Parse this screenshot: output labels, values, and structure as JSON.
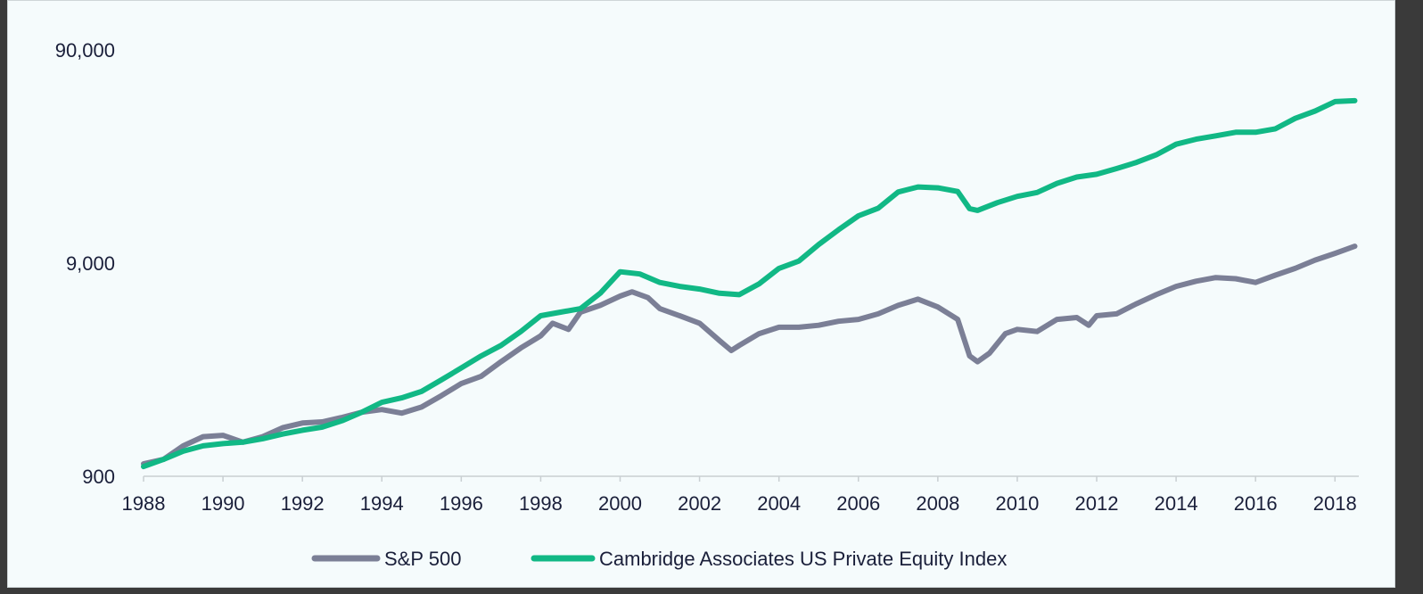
{
  "chart_data": {
    "type": "line",
    "title": "",
    "xlabel": "",
    "ylabel": "",
    "x_range": [
      1988,
      2018.6
    ],
    "y_scale": "log",
    "ylim": [
      900,
      90000
    ],
    "y_ticks": [
      {
        "value": 90000,
        "label": "90,000"
      },
      {
        "value": 9000,
        "label": "9,000"
      },
      {
        "value": 900,
        "label": "900"
      }
    ],
    "x_ticks": [
      {
        "value": 1988,
        "label": "1988"
      },
      {
        "value": 1990,
        "label": "1990"
      },
      {
        "value": 1992,
        "label": "1992"
      },
      {
        "value": 1994,
        "label": "1994"
      },
      {
        "value": 1996,
        "label": "1996"
      },
      {
        "value": 1998,
        "label": "1998"
      },
      {
        "value": 2000,
        "label": "2000"
      },
      {
        "value": 2002,
        "label": "2002"
      },
      {
        "value": 2004,
        "label": "2004"
      },
      {
        "value": 2006,
        "label": "2006"
      },
      {
        "value": 2008,
        "label": "2008"
      },
      {
        "value": 2010,
        "label": "2010"
      },
      {
        "value": 2012,
        "label": "2012"
      },
      {
        "value": 2014,
        "label": "2014"
      },
      {
        "value": 2016,
        "label": "2016"
      },
      {
        "value": 2018,
        "label": "2018"
      }
    ],
    "grid": false,
    "legend_position": "bottom",
    "series": [
      {
        "name": "S&P 500",
        "color": "#7b7f96",
        "points": [
          [
            1988.0,
            1030
          ],
          [
            1988.5,
            1080
          ],
          [
            1989.0,
            1250
          ],
          [
            1989.5,
            1380
          ],
          [
            1990.0,
            1400
          ],
          [
            1990.5,
            1300
          ],
          [
            1991.0,
            1380
          ],
          [
            1991.5,
            1520
          ],
          [
            1992.0,
            1600
          ],
          [
            1992.5,
            1620
          ],
          [
            1993.0,
            1700
          ],
          [
            1993.5,
            1800
          ],
          [
            1994.0,
            1850
          ],
          [
            1994.5,
            1780
          ],
          [
            1995.0,
            1900
          ],
          [
            1995.5,
            2150
          ],
          [
            1996.0,
            2450
          ],
          [
            1996.5,
            2650
          ],
          [
            1997.0,
            3100
          ],
          [
            1997.5,
            3600
          ],
          [
            1998.0,
            4100
          ],
          [
            1998.3,
            4700
          ],
          [
            1998.7,
            4400
          ],
          [
            1999.0,
            5300
          ],
          [
            1999.5,
            5700
          ],
          [
            2000.0,
            6300
          ],
          [
            2000.3,
            6600
          ],
          [
            2000.7,
            6200
          ],
          [
            2001.0,
            5500
          ],
          [
            2001.5,
            5100
          ],
          [
            2002.0,
            4700
          ],
          [
            2002.5,
            3900
          ],
          [
            2002.8,
            3500
          ],
          [
            2003.0,
            3700
          ],
          [
            2003.5,
            4200
          ],
          [
            2004.0,
            4500
          ],
          [
            2004.5,
            4500
          ],
          [
            2005.0,
            4600
          ],
          [
            2005.5,
            4800
          ],
          [
            2006.0,
            4900
          ],
          [
            2006.5,
            5200
          ],
          [
            2007.0,
            5700
          ],
          [
            2007.5,
            6100
          ],
          [
            2008.0,
            5600
          ],
          [
            2008.5,
            4900
          ],
          [
            2008.8,
            3300
          ],
          [
            2009.0,
            3100
          ],
          [
            2009.3,
            3400
          ],
          [
            2009.7,
            4200
          ],
          [
            2010.0,
            4400
          ],
          [
            2010.5,
            4300
          ],
          [
            2011.0,
            4900
          ],
          [
            2011.5,
            5000
          ],
          [
            2011.8,
            4600
          ],
          [
            2012.0,
            5100
          ],
          [
            2012.5,
            5200
          ],
          [
            2013.0,
            5800
          ],
          [
            2013.5,
            6400
          ],
          [
            2014.0,
            7000
          ],
          [
            2014.5,
            7400
          ],
          [
            2015.0,
            7700
          ],
          [
            2015.5,
            7600
          ],
          [
            2016.0,
            7300
          ],
          [
            2016.5,
            7900
          ],
          [
            2017.0,
            8500
          ],
          [
            2017.5,
            9300
          ],
          [
            2018.0,
            10000
          ],
          [
            2018.5,
            10800
          ]
        ]
      },
      {
        "name": "Cambridge Associates US Private Equity Index",
        "color": "#11b885",
        "points": [
          [
            1988.0,
            1000
          ],
          [
            1988.5,
            1080
          ],
          [
            1989.0,
            1180
          ],
          [
            1989.5,
            1250
          ],
          [
            1990.0,
            1280
          ],
          [
            1990.5,
            1300
          ],
          [
            1991.0,
            1350
          ],
          [
            1991.5,
            1420
          ],
          [
            1992.0,
            1480
          ],
          [
            1992.5,
            1530
          ],
          [
            1993.0,
            1640
          ],
          [
            1993.5,
            1800
          ],
          [
            1994.0,
            2000
          ],
          [
            1994.5,
            2100
          ],
          [
            1995.0,
            2250
          ],
          [
            1995.5,
            2550
          ],
          [
            1996.0,
            2900
          ],
          [
            1996.5,
            3300
          ],
          [
            1997.0,
            3700
          ],
          [
            1997.5,
            4300
          ],
          [
            1998.0,
            5100
          ],
          [
            1998.5,
            5300
          ],
          [
            1999.0,
            5500
          ],
          [
            1999.5,
            6500
          ],
          [
            2000.0,
            8200
          ],
          [
            2000.5,
            8000
          ],
          [
            2001.0,
            7300
          ],
          [
            2001.5,
            7000
          ],
          [
            2002.0,
            6800
          ],
          [
            2002.5,
            6500
          ],
          [
            2003.0,
            6400
          ],
          [
            2003.5,
            7200
          ],
          [
            2004.0,
            8500
          ],
          [
            2004.5,
            9200
          ],
          [
            2005.0,
            11000
          ],
          [
            2005.5,
            12900
          ],
          [
            2006.0,
            15000
          ],
          [
            2006.5,
            16300
          ],
          [
            2007.0,
            19400
          ],
          [
            2007.5,
            20500
          ],
          [
            2008.0,
            20300
          ],
          [
            2008.5,
            19500
          ],
          [
            2008.8,
            16200
          ],
          [
            2009.0,
            15900
          ],
          [
            2009.5,
            17300
          ],
          [
            2010.0,
            18500
          ],
          [
            2010.5,
            19300
          ],
          [
            2011.0,
            21300
          ],
          [
            2011.5,
            22800
          ],
          [
            2012.0,
            23500
          ],
          [
            2012.5,
            25000
          ],
          [
            2013.0,
            26700
          ],
          [
            2013.5,
            29000
          ],
          [
            2014.0,
            32500
          ],
          [
            2014.5,
            34300
          ],
          [
            2015.0,
            35600
          ],
          [
            2015.5,
            37000
          ],
          [
            2016.0,
            37000
          ],
          [
            2016.5,
            38400
          ],
          [
            2017.0,
            43000
          ],
          [
            2017.5,
            46500
          ],
          [
            2018.0,
            51500
          ],
          [
            2018.5,
            52000
          ]
        ]
      }
    ]
  }
}
